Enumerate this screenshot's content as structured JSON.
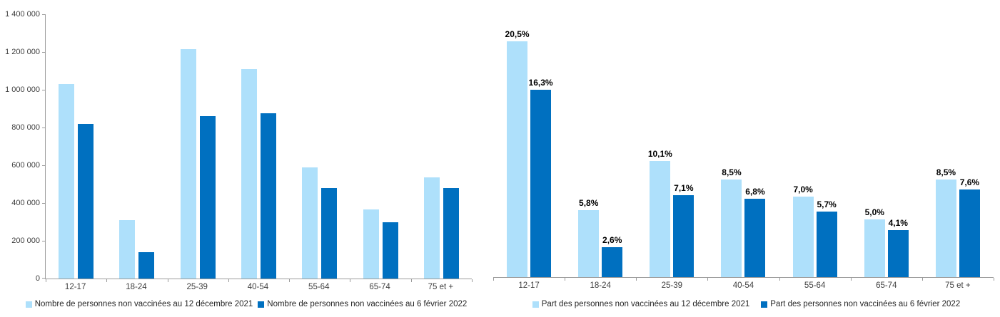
{
  "accent_colors": {
    "light_blue": "#AEE0FB",
    "dark_blue": "#0070C0",
    "axis_gray": "#9B9B9B"
  },
  "chart_data": [
    {
      "type": "bar",
      "title": "",
      "xlabel": "",
      "ylabel": "",
      "grid": false,
      "legend_position": "bottom",
      "categories": [
        "12-17",
        "18-24",
        "25-39",
        "40-54",
        "55-64",
        "65-74",
        "75 et +"
      ],
      "series": [
        {
          "name": "Nombre de personnes non vaccinées au 12 décembre 2021",
          "color": "#AEE0FB",
          "values": [
            1030000,
            310000,
            1215000,
            1110000,
            588000,
            365000,
            535000
          ]
        },
        {
          "name": "Nombre de personnes non vaccinées au 6 février 2022",
          "color": "#0070C0",
          "values": [
            820000,
            140000,
            860000,
            875000,
            480000,
            297000,
            478000
          ]
        }
      ],
      "ylim": [
        0,
        1400000
      ],
      "yticks": [
        {
          "value": 1400000,
          "label": "1 400 000"
        },
        {
          "value": 1200000,
          "label": "1 200 000"
        },
        {
          "value": 1000000,
          "label": "1 000 000"
        },
        {
          "value": 800000,
          "label": "800 000"
        },
        {
          "value": 600000,
          "label": "600 000"
        },
        {
          "value": 400000,
          "label": "400 000"
        },
        {
          "value": 200000,
          "label": "200 000"
        },
        {
          "value": 0,
          "label": "0"
        }
      ]
    },
    {
      "type": "bar",
      "title": "",
      "xlabel": "",
      "ylabel": "",
      "grid": false,
      "legend_position": "bottom",
      "categories": [
        "12-17",
        "18-24",
        "25-39",
        "40-54",
        "55-64",
        "65-74",
        "75 et +"
      ],
      "series": [
        {
          "name": "Part des personnes non vaccinées au 12 décembre 2021",
          "color": "#AEE0FB",
          "values": [
            20.5,
            5.8,
            10.1,
            8.5,
            7.0,
            5.0,
            8.5
          ],
          "labels": [
            "20,5%",
            "5,8%",
            "10,1%",
            "8,5%",
            "7,0%",
            "5,0%",
            "8,5%"
          ]
        },
        {
          "name": "Part des personnes non vaccinées au 6 février 2022",
          "color": "#0070C0",
          "values": [
            16.3,
            2.6,
            7.1,
            6.8,
            5.7,
            4.1,
            7.6
          ],
          "labels": [
            "16,3%",
            "2,6%",
            "7,1%",
            "6,8%",
            "5,7%",
            "4,1%",
            "7,6%"
          ]
        }
      ],
      "ylim": [
        0,
        22
      ],
      "yticks": []
    }
  ]
}
